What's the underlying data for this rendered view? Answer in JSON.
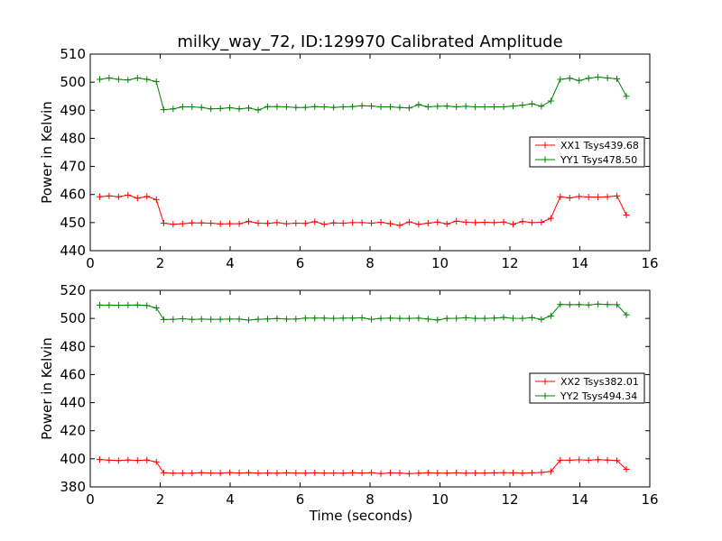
{
  "title": "milky_way_72, ID:129970 Calibrated Amplitude",
  "chart_data": [
    {
      "type": "line",
      "ylabel": "Power in Kelvin",
      "xlabel": "",
      "xlim": [
        0,
        16
      ],
      "ylim": [
        440,
        510
      ],
      "xticks": [
        "0",
        "2",
        "4",
        "6",
        "8",
        "10",
        "12",
        "14",
        "16"
      ],
      "yticks": [
        "440",
        "450",
        "460",
        "470",
        "480",
        "490",
        "500",
        "510"
      ],
      "legend": "right",
      "grid": false,
      "x": [
        0.27,
        0.54,
        0.81,
        1.08,
        1.35,
        1.62,
        1.89,
        2.1,
        2.37,
        2.64,
        2.91,
        3.18,
        3.45,
        3.72,
        3.99,
        4.26,
        4.53,
        4.8,
        5.07,
        5.34,
        5.61,
        5.88,
        6.15,
        6.42,
        6.69,
        6.96,
        7.23,
        7.5,
        7.77,
        8.04,
        8.31,
        8.58,
        8.85,
        9.12,
        9.39,
        9.66,
        9.93,
        10.2,
        10.47,
        10.74,
        11.01,
        11.28,
        11.55,
        11.82,
        12.09,
        12.36,
        12.63,
        12.9,
        13.17,
        13.44,
        13.71,
        13.98,
        14.25,
        14.52,
        14.79,
        15.06,
        15.33
      ],
      "series": [
        {
          "name": "XX1 Tsys439.68",
          "color": "#ff0000",
          "values": [
            459.2,
            459.5,
            459.2,
            459.8,
            458.7,
            459.3,
            458.2,
            449.8,
            449.4,
            449.6,
            449.9,
            449.9,
            449.8,
            449.5,
            449.6,
            449.6,
            450.4,
            449.8,
            449.7,
            450.0,
            449.6,
            449.8,
            449.7,
            450.3,
            449.4,
            449.9,
            449.8,
            450.0,
            450.0,
            449.8,
            450.1,
            449.6,
            449.0,
            450.2,
            449.4,
            449.8,
            450.2,
            449.5,
            450.5,
            450.1,
            450.0,
            450.1,
            450.0,
            450.2,
            449.4,
            450.4,
            450.0,
            450.1,
            451.5,
            459.2,
            458.8,
            459.3,
            459.1,
            459.1,
            459.2,
            459.5,
            452.7
          ]
        },
        {
          "name": "YY1 Tsys478.50",
          "color": "#008000",
          "values": [
            501.0,
            501.5,
            501.0,
            500.8,
            501.5,
            501.0,
            500.2,
            490.2,
            490.5,
            491.2,
            491.2,
            491.0,
            490.5,
            490.6,
            490.9,
            490.5,
            490.8,
            490.1,
            491.3,
            491.3,
            491.2,
            491.0,
            491.0,
            491.3,
            491.2,
            491.0,
            491.2,
            491.3,
            491.6,
            491.5,
            491.2,
            491.2,
            491.0,
            490.8,
            492.0,
            491.2,
            491.4,
            491.5,
            491.2,
            491.4,
            491.2,
            491.2,
            491.2,
            491.2,
            491.5,
            491.8,
            492.3,
            491.4,
            493.3,
            501.0,
            501.4,
            500.6,
            501.4,
            501.8,
            501.5,
            501.2,
            495.0
          ]
        }
      ]
    },
    {
      "type": "line",
      "ylabel": "Power in Kelvin",
      "xlabel": "Time (seconds)",
      "xlim": [
        0,
        16
      ],
      "ylim": [
        380,
        520
      ],
      "xticks": [
        "0",
        "2",
        "4",
        "6",
        "8",
        "10",
        "12",
        "14",
        "16"
      ],
      "yticks": [
        "380",
        "400",
        "420",
        "440",
        "460",
        "480",
        "500",
        "520"
      ],
      "legend": "right",
      "grid": false,
      "x": [
        0.27,
        0.54,
        0.81,
        1.08,
        1.35,
        1.62,
        1.89,
        2.1,
        2.37,
        2.64,
        2.91,
        3.18,
        3.45,
        3.72,
        3.99,
        4.26,
        4.53,
        4.8,
        5.07,
        5.34,
        5.61,
        5.88,
        6.15,
        6.42,
        6.69,
        6.96,
        7.23,
        7.5,
        7.77,
        8.04,
        8.31,
        8.58,
        8.85,
        9.12,
        9.39,
        9.66,
        9.93,
        10.2,
        10.47,
        10.74,
        11.01,
        11.28,
        11.55,
        11.82,
        12.09,
        12.36,
        12.63,
        12.9,
        13.17,
        13.44,
        13.71,
        13.98,
        14.25,
        14.52,
        14.79,
        15.06,
        15.33
      ],
      "series": [
        {
          "name": "XX2 Tsys382.01",
          "color": "#ff0000",
          "values": [
            399.5,
            399.0,
            398.8,
            399.2,
            398.9,
            399.1,
            397.8,
            390.0,
            389.8,
            389.8,
            389.8,
            390.1,
            389.9,
            389.8,
            390.2,
            389.9,
            390.1,
            389.8,
            389.9,
            389.8,
            390.0,
            389.9,
            389.8,
            390.0,
            389.9,
            389.9,
            389.8,
            390.0,
            389.9,
            390.1,
            389.5,
            390.0,
            389.9,
            389.5,
            389.8,
            390.0,
            389.9,
            389.8,
            390.0,
            389.8,
            389.9,
            389.9,
            390.0,
            390.1,
            390.0,
            389.8,
            390.0,
            390.3,
            391.0,
            399.0,
            399.0,
            399.3,
            399.0,
            399.4,
            399.1,
            398.8,
            392.5
          ]
        },
        {
          "name": "YY2 Tsys494.34",
          "color": "#008000",
          "values": [
            509.5,
            509.5,
            509.4,
            509.5,
            509.6,
            509.2,
            507.5,
            499.2,
            499.4,
            499.8,
            499.3,
            499.5,
            499.4,
            499.4,
            499.5,
            499.5,
            498.8,
            499.4,
            499.6,
            499.9,
            499.5,
            499.6,
            500.2,
            500.2,
            500.2,
            500.0,
            500.2,
            500.2,
            500.4,
            499.4,
            500.0,
            500.2,
            500.0,
            500.0,
            500.2,
            499.5,
            498.9,
            500.0,
            500.1,
            500.5,
            500.0,
            500.0,
            500.2,
            500.7,
            500.1,
            500.0,
            500.6,
            499.3,
            501.8,
            510.0,
            509.8,
            509.9,
            509.6,
            510.2,
            509.9,
            509.8,
            502.6
          ]
        }
      ]
    }
  ]
}
